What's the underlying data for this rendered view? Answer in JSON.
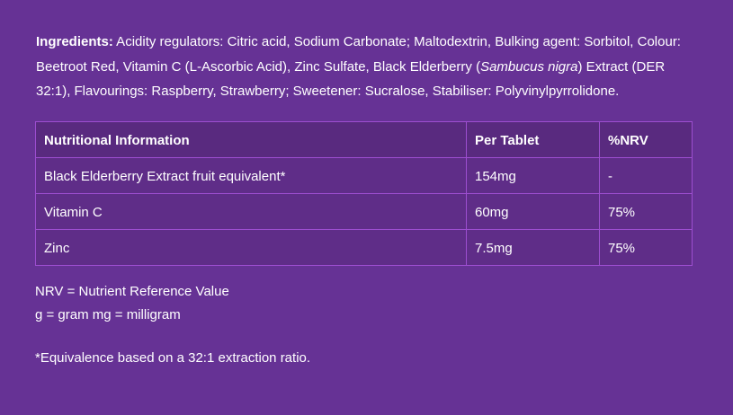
{
  "colors": {
    "page_background": "#663295",
    "table_header_background": "#592a7f",
    "table_row_background": "#5f2d88",
    "table_border": "#9d4ed0",
    "text": "#ffffff"
  },
  "ingredients": {
    "label": "Ingredients:",
    "text_before_species": " Acidity regulators: Citric acid, Sodium Carbonate; Maltodextrin, Bulking agent: Sorbitol, Colour: Beetroot Red, Vitamin C (L-Ascorbic Acid), Zinc Sulfate, Black Elderberry (",
    "species": "Sambucus nigra",
    "text_after_species": ") Extract (DER 32:1), Flavourings: Raspberry, Strawberry; Sweetener: Sucralose, Stabiliser: Polyvinylpyrrolidone."
  },
  "nutrition_table": {
    "headers": [
      "Nutritional Information",
      "Per Tablet",
      "%NRV"
    ],
    "rows": [
      {
        "nutrient": "Black Elderberry Extract fruit equivalent*",
        "per_tablet": "154mg",
        "nrv": "-"
      },
      {
        "nutrient": "Vitamin C",
        "per_tablet": "60mg",
        "nrv": "75%"
      },
      {
        "nutrient": "Zinc",
        "per_tablet": "7.5mg",
        "nrv": "75%"
      }
    ]
  },
  "notes": {
    "nrv_definition": "NRV = Nutrient Reference Value",
    "unit_definitions": "g = gram mg = milligram",
    "equivalence": "*Equivalence based on a 32:1 extraction ratio."
  }
}
